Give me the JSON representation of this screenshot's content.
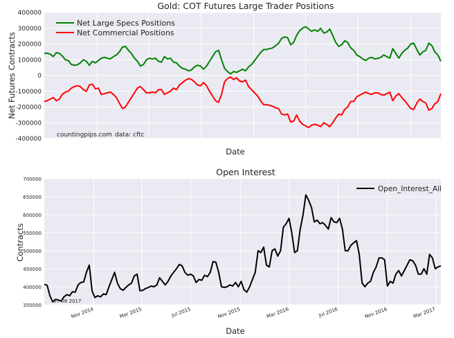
{
  "chart_data": [
    {
      "type": "line",
      "title": "Gold: COT Futures Large Trader Positions",
      "xlabel": "Date",
      "ylabel": "Net Futures Contracts",
      "ylim": [
        -400000,
        400000
      ],
      "yticks": [
        -400000,
        -300000,
        -200000,
        -100000,
        0,
        100000,
        200000,
        300000,
        400000
      ],
      "ytick_labels": [
        "-400000",
        "-300000",
        "-200000",
        "-100000",
        "0",
        "100000",
        "200000",
        "300000",
        "400000"
      ],
      "grid": true,
      "legend_position": "top-left",
      "annotations": [
        "countingpips.com",
        "data: cftc"
      ],
      "x_start": "2014-07-01",
      "x_step_days": 7,
      "series": [
        {
          "name": "Net Large Specs Positions",
          "color": "#008000",
          "values": [
            140000,
            142000,
            135000,
            120000,
            145000,
            140000,
            125000,
            100000,
            95000,
            70000,
            65000,
            68000,
            80000,
            100000,
            90000,
            65000,
            90000,
            80000,
            95000,
            110000,
            115000,
            110000,
            105000,
            120000,
            130000,
            150000,
            180000,
            185000,
            160000,
            140000,
            110000,
            90000,
            60000,
            70000,
            100000,
            110000,
            105000,
            110000,
            90000,
            85000,
            120000,
            105000,
            110000,
            85000,
            80000,
            60000,
            45000,
            40000,
            30000,
            35000,
            55000,
            65000,
            60000,
            40000,
            60000,
            90000,
            120000,
            150000,
            160000,
            100000,
            45000,
            25000,
            10000,
            25000,
            20000,
            30000,
            40000,
            30000,
            55000,
            70000,
            95000,
            120000,
            145000,
            165000,
            165000,
            170000,
            175000,
            190000,
            205000,
            235000,
            245000,
            240000,
            195000,
            210000,
            255000,
            285000,
            300000,
            310000,
            295000,
            280000,
            290000,
            280000,
            300000,
            270000,
            275000,
            295000,
            255000,
            210000,
            185000,
            195000,
            220000,
            210000,
            175000,
            160000,
            130000,
            120000,
            105000,
            95000,
            110000,
            115000,
            105000,
            108000,
            115000,
            130000,
            120000,
            110000,
            170000,
            140000,
            110000,
            140000,
            160000,
            175000,
            200000,
            205000,
            165000,
            130000,
            150000,
            160000,
            205000,
            190000,
            150000,
            130000,
            90000
          ]
        },
        {
          "name": "Net Commercial Positions",
          "color": "#ff0000",
          "values": [
            -165000,
            -160000,
            -150000,
            -140000,
            -160000,
            -150000,
            -120000,
            -105000,
            -100000,
            -80000,
            -70000,
            -65000,
            -70000,
            -90000,
            -100000,
            -60000,
            -55000,
            -85000,
            -80000,
            -120000,
            -115000,
            -110000,
            -105000,
            -120000,
            -140000,
            -175000,
            -210000,
            -200000,
            -170000,
            -140000,
            -110000,
            -80000,
            -70000,
            -90000,
            -110000,
            -110000,
            -105000,
            -110000,
            -90000,
            -90000,
            -120000,
            -110000,
            -100000,
            -80000,
            -90000,
            -60000,
            -45000,
            -30000,
            -20000,
            -25000,
            -40000,
            -60000,
            -65000,
            -45000,
            -65000,
            -100000,
            -130000,
            -160000,
            -170000,
            -120000,
            -40000,
            -20000,
            -10000,
            -25000,
            -15000,
            -35000,
            -40000,
            -30000,
            -70000,
            -90000,
            -110000,
            -130000,
            -160000,
            -185000,
            -185000,
            -190000,
            -195000,
            -205000,
            -210000,
            -245000,
            -250000,
            -245000,
            -295000,
            -290000,
            -250000,
            -290000,
            -310000,
            -320000,
            -330000,
            -315000,
            -310000,
            -315000,
            -325000,
            -300000,
            -310000,
            -325000,
            -300000,
            -270000,
            -245000,
            -250000,
            -215000,
            -200000,
            -165000,
            -165000,
            -135000,
            -125000,
            -115000,
            -105000,
            -115000,
            -120000,
            -110000,
            -110000,
            -120000,
            -125000,
            -115000,
            -105000,
            -160000,
            -130000,
            -115000,
            -140000,
            -160000,
            -185000,
            -210000,
            -215000,
            -175000,
            -150000,
            -165000,
            -175000,
            -220000,
            -210000,
            -180000,
            -165000,
            -115000
          ]
        }
      ]
    },
    {
      "type": "line",
      "title": "Open Interest",
      "xlabel": "Date",
      "ylabel": "Contracts",
      "ylim": [
        350000,
        700000
      ],
      "yticks": [
        350000,
        400000,
        450000,
        500000,
        550000,
        600000,
        650000,
        700000
      ],
      "ytick_labels": [
        "350000",
        "400000",
        "450000",
        "500000",
        "550000",
        "600000",
        "650000",
        "700000"
      ],
      "grid": true,
      "legend_position": "top-right",
      "x_start": "2014-07-01",
      "x_step_days": 7,
      "x_tick_dates": [
        "2014-11-01",
        "2015-03-01",
        "2015-07-01",
        "2015-11-01",
        "2016-03-01",
        "2016-07-01",
        "2016-11-01",
        "2017-03-01",
        "2017-07-01"
      ],
      "x_tick_labels": [
        "Nov 2014",
        "Mar 2015",
        "Jul 2015",
        "Nov 2015",
        "Mar 2016",
        "Jul 2016",
        "Nov 2016",
        "Mar 2017",
        "Jul 2017"
      ],
      "annotations": [
        "07-08 2017"
      ],
      "series": [
        {
          "name": "Open_Interest_All",
          "color": "#000000",
          "values": [
            407000,
            404000,
            375000,
            358000,
            365000,
            363000,
            360000,
            372000,
            378000,
            375000,
            386000,
            385000,
            405000,
            412000,
            413000,
            441000,
            460000,
            388000,
            370000,
            375000,
            372000,
            380000,
            378000,
            400000,
            420000,
            440000,
            410000,
            395000,
            390000,
            398000,
            405000,
            410000,
            430000,
            435000,
            389000,
            390000,
            395000,
            398000,
            402000,
            400000,
            405000,
            425000,
            415000,
            405000,
            415000,
            430000,
            440000,
            450000,
            462000,
            458000,
            440000,
            432000,
            435000,
            430000,
            412000,
            420000,
            418000,
            432000,
            428000,
            440000,
            470000,
            468000,
            440000,
            400000,
            398000,
            400000,
            405000,
            402000,
            412000,
            400000,
            415000,
            392000,
            385000,
            400000,
            420000,
            440000,
            500000,
            495000,
            510000,
            460000,
            455000,
            500000,
            505000,
            485000,
            500000,
            565000,
            575000,
            590000,
            550000,
            495000,
            500000,
            560000,
            600000,
            655000,
            640000,
            620000,
            580000,
            585000,
            575000,
            578000,
            570000,
            560000,
            592000,
            580000,
            578000,
            590000,
            560000,
            500000,
            500000,
            515000,
            522000,
            528000,
            490000,
            410000,
            400000,
            410000,
            415000,
            440000,
            455000,
            480000,
            480000,
            475000,
            402000,
            415000,
            410000,
            435000,
            445000,
            430000,
            445000,
            460000,
            475000,
            472000,
            460000,
            435000,
            435000,
            450000,
            435000,
            490000,
            480000,
            450000,
            455000,
            458000
          ]
        }
      ]
    }
  ]
}
